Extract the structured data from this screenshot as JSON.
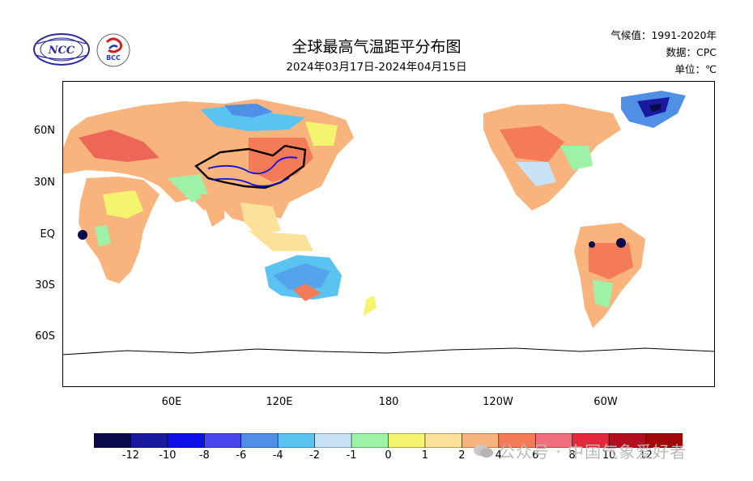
{
  "header": {
    "title": "全球最高气温距平分布图",
    "subtitle": "2024年03月17日-2024年04月15日",
    "climate_period": "气候值：1991-2020年",
    "data_source": "数据：CPC",
    "unit": "单位：℃"
  },
  "logos": {
    "left_logo": "NCC",
    "right_logo": "BCC"
  },
  "axes": {
    "y_ticks": [
      "60N",
      "30N",
      "EQ",
      "30S",
      "60S"
    ],
    "x_ticks": [
      "60E",
      "120E",
      "180",
      "120W",
      "60W"
    ]
  },
  "colorbar": {
    "labels": [
      "-12",
      "-10",
      "-8",
      "-6",
      "-4",
      "-2",
      "-1",
      "0",
      "1",
      "2",
      "4",
      "6",
      "8",
      "10",
      "12"
    ],
    "colors": [
      "#0a0a4a",
      "#1a1a9e",
      "#0f0fe8",
      "#4646ec",
      "#4f8fe6",
      "#5bc3f2",
      "#c8e3f8",
      "#9df2a8",
      "#f4f46e",
      "#fbe19a",
      "#f9b37c",
      "#f47b58",
      "#ef6f7e",
      "#e2283a",
      "#b21020",
      "#a00808"
    ]
  },
  "watermark": "公众号 · 中国气象爱好者"
}
